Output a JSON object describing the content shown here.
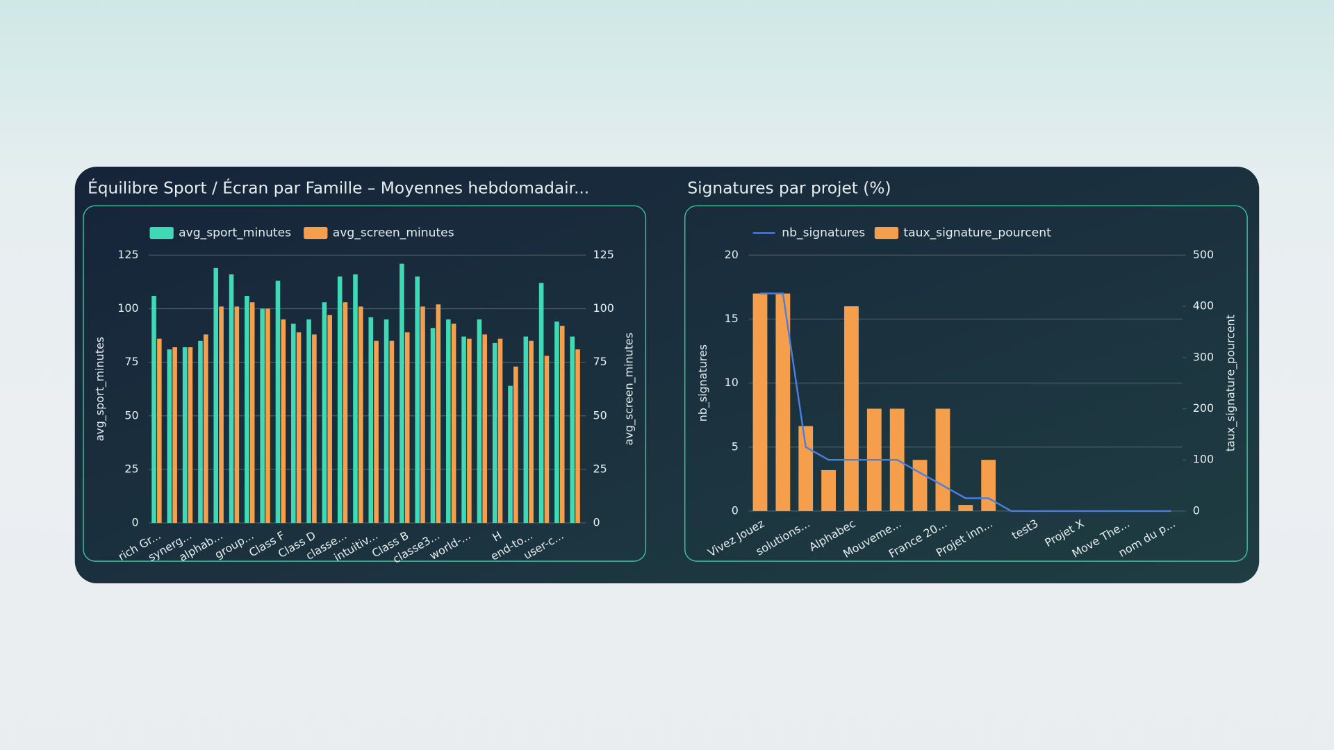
{
  "chart_data": [
    {
      "type": "bar",
      "title": "Équilibre Sport / Écran par Famille – Moyennes hebdomadair...",
      "categories": [
        "rich Gr...",
        null,
        "synerg...",
        null,
        "alphab...",
        null,
        "group...",
        null,
        "Class F",
        null,
        "Class D",
        null,
        "classe...",
        null,
        "intuitiv...",
        null,
        "Class B",
        null,
        "classe3...",
        null,
        "world-...",
        null,
        "H",
        null,
        "end-to...",
        null,
        "user-c...",
        null
      ],
      "series": [
        {
          "name": "avg_sport_minutes",
          "color": "#3fd9b5",
          "axis": "y",
          "values": [
            106,
            81,
            82,
            85,
            119,
            116,
            106,
            100,
            113,
            93,
            95,
            103,
            115,
            116,
            96,
            95,
            121,
            115,
            91,
            95,
            87,
            95,
            84,
            64,
            87,
            112,
            94,
            87
          ]
        },
        {
          "name": "avg_screen_minutes",
          "color": "#f59e4c",
          "axis": "y2",
          "values": [
            86,
            82,
            82,
            88,
            101,
            101,
            103,
            100,
            95,
            89,
            88,
            97,
            103,
            101,
            85,
            85,
            89,
            101,
            102,
            93,
            86,
            88,
            86,
            73,
            85,
            78,
            92,
            81
          ]
        }
      ],
      "ylabel": "avg_sport_minutes",
      "y2label": "avg_screen_minutes",
      "ylim": [
        0,
        125
      ],
      "yticks": [
        0,
        25,
        50,
        75,
        100,
        125
      ],
      "y2lim": [
        0,
        125
      ],
      "y2ticks": [
        0,
        25,
        50,
        75,
        100,
        125
      ],
      "grid": true
    },
    {
      "type": "combo",
      "title": "Signatures par projet (%)",
      "categories": [
        "Vivez Jouez",
        null,
        "solutions...",
        null,
        "Alphabec",
        null,
        "Mouveme...",
        null,
        "France 20...",
        null,
        "Projet inn...",
        null,
        "test3",
        null,
        "Projet X",
        null,
        "Move The...",
        null,
        "nom du p..."
      ],
      "series": [
        {
          "name": "nb_signatures",
          "type": "line",
          "color": "#4a7fe0",
          "axis": "y",
          "values": [
            17,
            17,
            5,
            4,
            4,
            4,
            4,
            3,
            2,
            1,
            1,
            0,
            0,
            0,
            0,
            0,
            0,
            0,
            0
          ]
        },
        {
          "name": "taux_signature_pourcent",
          "type": "bar",
          "color": "#f59e4c",
          "axis": "y2",
          "values": [
            425,
            425,
            166,
            80,
            400,
            200,
            200,
            100,
            200,
            12,
            100,
            0,
            0,
            0,
            0,
            0,
            0,
            0,
            0
          ]
        }
      ],
      "ylabel": "nb_signatures",
      "y2label": "taux_signature_pourcent",
      "ylim": [
        0,
        20
      ],
      "yticks": [
        0,
        5,
        10,
        15,
        20
      ],
      "y2lim": [
        0,
        500
      ],
      "y2ticks": [
        0,
        100,
        200,
        300,
        400,
        500
      ],
      "grid": true
    }
  ]
}
